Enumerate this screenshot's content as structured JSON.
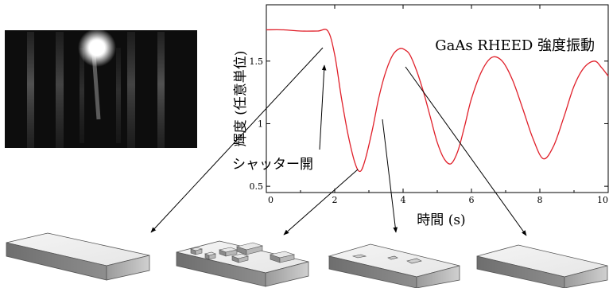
{
  "chart_data": {
    "type": "line",
    "title": "GaAs RHEED 強度振動",
    "xlabel": "時間 (s)",
    "ylabel": "輝度 (任意単位)",
    "xlim": [
      0,
      10
    ],
    "ylim": [
      0.45,
      1.95
    ],
    "x_ticks": [
      0,
      2,
      4,
      6,
      8,
      10
    ],
    "y_ticks": [
      0.5,
      1,
      1.5
    ],
    "x_tick_labels": [
      "0",
      "2",
      "4",
      "6",
      "8",
      "10"
    ],
    "y_tick_labels": [
      "0.5",
      "1",
      "1.5"
    ],
    "grid": false,
    "series": [
      {
        "color": "#e0202a",
        "x": [
          0,
          0.5,
          1.0,
          1.5,
          1.8,
          2.0,
          2.2,
          2.4,
          2.6,
          2.75,
          2.9,
          3.1,
          3.3,
          3.5,
          3.7,
          3.9,
          4.05,
          4.2,
          4.4,
          4.6,
          4.8,
          5.0,
          5.2,
          5.4,
          5.6,
          5.8,
          6.0,
          6.3,
          6.6,
          6.9,
          7.2,
          7.5,
          7.8,
          8.1,
          8.4,
          8.7,
          9.0,
          9.3,
          9.6,
          9.8,
          10.0
        ],
        "y": [
          1.75,
          1.75,
          1.74,
          1.74,
          1.74,
          1.55,
          1.2,
          0.9,
          0.68,
          0.62,
          0.72,
          0.95,
          1.22,
          1.42,
          1.55,
          1.6,
          1.59,
          1.55,
          1.42,
          1.25,
          1.05,
          0.85,
          0.72,
          0.68,
          0.78,
          0.98,
          1.2,
          1.42,
          1.53,
          1.5,
          1.35,
          1.12,
          0.88,
          0.72,
          0.82,
          1.05,
          1.3,
          1.45,
          1.5,
          1.45,
          1.38
        ]
      }
    ],
    "annotations": [
      {
        "text": "シャッター開"
      }
    ]
  },
  "figure": {
    "shutter_label": "シャッター開",
    "rheed_pattern_image": "rheed-diffraction-photo",
    "surface_diagrams": [
      "flat-surface",
      "island-growth-surface",
      "partial-coverage-surface",
      "flat-surface"
    ]
  },
  "colors": {
    "curve": "#e0202a",
    "axis": "#000000"
  }
}
